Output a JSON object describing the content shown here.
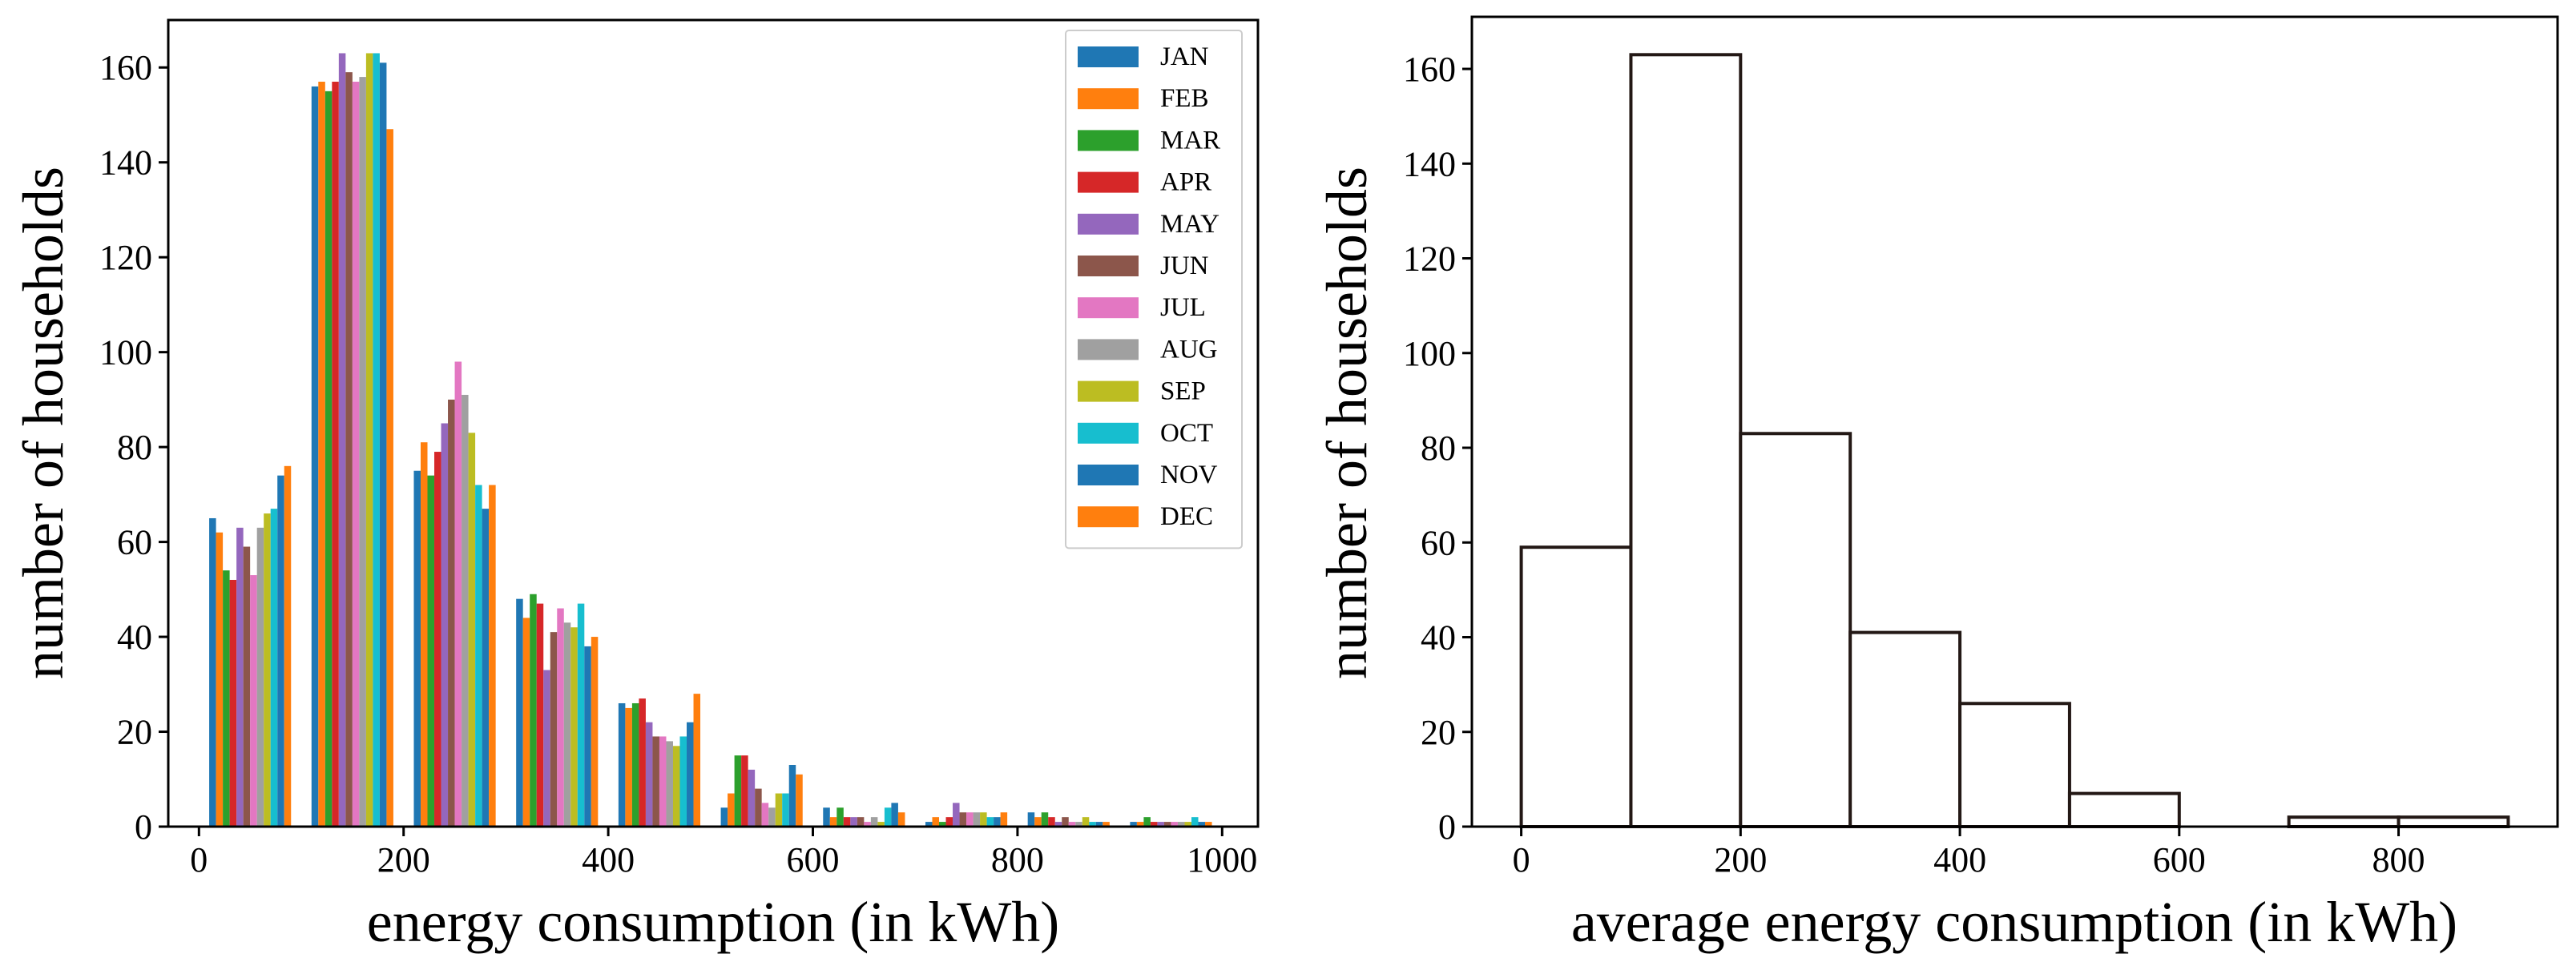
{
  "chart_data": [
    {
      "type": "bar",
      "subtype": "grouped-histogram",
      "title": "",
      "xlabel": "energy consumption (in kWh)",
      "ylabel": "number of households",
      "xlim": [
        -30,
        1035
      ],
      "ylim": [
        0,
        170
      ],
      "xticks": [
        0,
        200,
        400,
        600,
        800,
        1000
      ],
      "yticks": [
        0,
        20,
        40,
        60,
        80,
        100,
        120,
        140,
        160
      ],
      "bin_width": 100,
      "bin_starts": [
        0,
        100,
        200,
        300,
        400,
        500,
        600,
        700,
        800,
        900
      ],
      "legend_position": "top-right",
      "series": [
        {
          "name": "JAN",
          "color": "#1f77b4",
          "values": [
            65,
            156,
            75,
            48,
            26,
            4,
            4,
            1,
            3,
            1
          ]
        },
        {
          "name": "FEB",
          "color": "#ff7f0e",
          "values": [
            62,
            157,
            81,
            44,
            25,
            7,
            2,
            2,
            2,
            1
          ]
        },
        {
          "name": "MAR",
          "color": "#2ca02c",
          "values": [
            54,
            155,
            74,
            49,
            26,
            15,
            4,
            1,
            3,
            2
          ]
        },
        {
          "name": "APR",
          "color": "#d62728",
          "values": [
            52,
            157,
            79,
            47,
            27,
            15,
            2,
            2,
            2,
            1
          ]
        },
        {
          "name": "MAY",
          "color": "#9467bd",
          "values": [
            63,
            163,
            85,
            33,
            22,
            12,
            2,
            5,
            1,
            1
          ]
        },
        {
          "name": "JUN",
          "color": "#8c564b",
          "values": [
            59,
            159,
            90,
            41,
            19,
            8,
            2,
            3,
            2,
            1
          ]
        },
        {
          "name": "JUL",
          "color": "#e377c2",
          "values": [
            53,
            157,
            98,
            46,
            19,
            5,
            1,
            3,
            1,
            1
          ]
        },
        {
          "name": "AUG",
          "color": "#a0a0a0",
          "values": [
            63,
            158,
            91,
            43,
            18,
            4,
            2,
            3,
            1,
            1
          ]
        },
        {
          "name": "SEP",
          "color": "#bcbd22",
          "values": [
            66,
            163,
            83,
            42,
            17,
            7,
            1,
            3,
            2,
            1
          ]
        },
        {
          "name": "OCT",
          "color": "#17becf",
          "values": [
            67,
            163,
            72,
            47,
            19,
            7,
            4,
            2,
            1,
            2
          ]
        },
        {
          "name": "NOV",
          "color": "#1f77b4",
          "values": [
            74,
            161,
            67,
            38,
            22,
            13,
            5,
            2,
            1,
            1
          ]
        },
        {
          "name": "DEC",
          "color": "#ff7f0e",
          "values": [
            76,
            147,
            72,
            40,
            28,
            11,
            3,
            3,
            1,
            1
          ]
        }
      ]
    },
    {
      "type": "bar",
      "subtype": "histogram",
      "title": "",
      "xlabel": "average energy consumption (in kWh)",
      "ylabel": "number of households",
      "xlim": [
        -45,
        945
      ],
      "ylim": [
        0,
        171
      ],
      "xticks": [
        0,
        200,
        400,
        600,
        800
      ],
      "yticks": [
        0,
        20,
        40,
        60,
        80,
        100,
        120,
        140,
        160
      ],
      "bin_edges": [
        0,
        100,
        200,
        300,
        400,
        500,
        600,
        700,
        800,
        900
      ],
      "values": [
        59,
        163,
        83,
        41,
        26,
        7,
        0,
        2,
        2
      ],
      "bar_fill": "#ffffff",
      "bar_edge": "#231815"
    }
  ]
}
